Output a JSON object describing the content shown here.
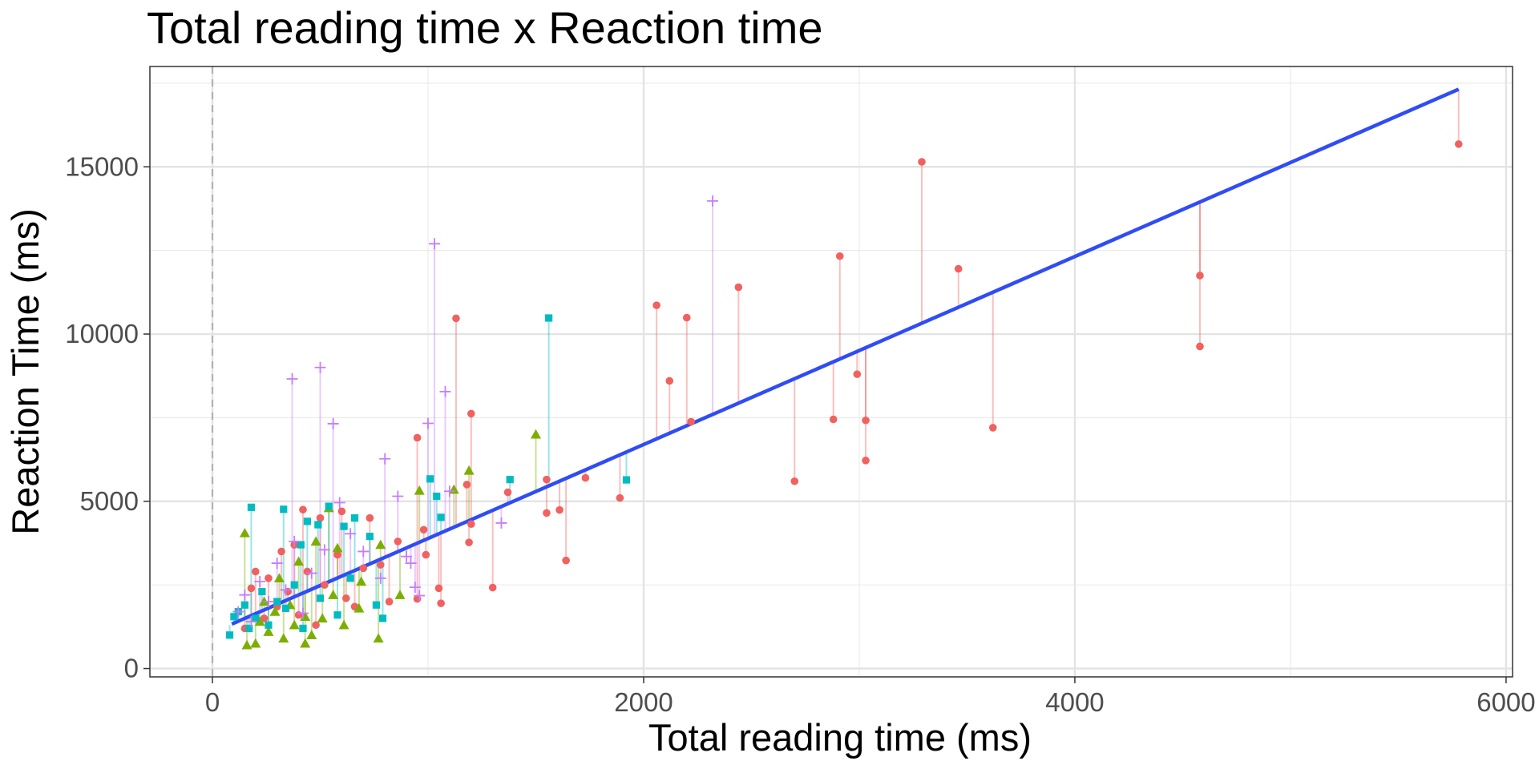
{
  "chart_data": {
    "type": "scatter",
    "title": "Total reading time x Reaction time",
    "xlabel": "Total reading time (ms)",
    "ylabel": "Reaction Time (ms)",
    "xlim": [
      -290,
      6030
    ],
    "ylim": [
      -250,
      18000
    ],
    "x_ticks": [
      0,
      2000,
      4000,
      6000
    ],
    "x_tick_labels": [
      "0",
      "2000",
      "4000",
      "6000"
    ],
    "y_ticks": [
      0,
      5000,
      10000,
      15000
    ],
    "y_tick_labels": [
      "0",
      "5000",
      "10000",
      "15000"
    ],
    "grid": true,
    "legend": "none",
    "reference_line": {
      "x": 0,
      "style": "dashed",
      "color": "#b3b3b3"
    },
    "fit_line": {
      "color": "#2f4cf5",
      "x": [
        90,
        5780
      ],
      "y": [
        1330,
        17320
      ]
    },
    "series": [
      {
        "shape": "circle",
        "color": "#f0615f",
        "points": [
          [
            5780,
            15680
          ],
          [
            3290,
            15150
          ],
          [
            2910,
            12330
          ],
          [
            3460,
            11950
          ],
          [
            2440,
            11400
          ],
          [
            4580,
            11750
          ],
          [
            4580,
            9630
          ],
          [
            2060,
            10860
          ],
          [
            2200,
            10490
          ],
          [
            1130,
            10470
          ],
          [
            2120,
            8600
          ],
          [
            2990,
            8800
          ],
          [
            2880,
            7450
          ],
          [
            3030,
            7420
          ],
          [
            3030,
            6220
          ],
          [
            3620,
            7200
          ],
          [
            2220,
            7380
          ],
          [
            2700,
            5600
          ],
          [
            1200,
            7620
          ],
          [
            1730,
            5700
          ],
          [
            1550,
            5650
          ],
          [
            1890,
            5100
          ],
          [
            1610,
            4740
          ],
          [
            1550,
            4650
          ],
          [
            1640,
            3230
          ],
          [
            1370,
            5270
          ],
          [
            1180,
            5500
          ],
          [
            1200,
            4320
          ],
          [
            1190,
            3770
          ],
          [
            1300,
            2420
          ],
          [
            950,
            6900
          ],
          [
            980,
            4150
          ],
          [
            990,
            3400
          ],
          [
            1050,
            2400
          ],
          [
            1060,
            1950
          ],
          [
            950,
            2080
          ],
          [
            860,
            3800
          ],
          [
            780,
            3100
          ],
          [
            820,
            2000
          ],
          [
            730,
            4500
          ],
          [
            600,
            4700
          ],
          [
            420,
            4750
          ],
          [
            500,
            4500
          ],
          [
            380,
            3700
          ],
          [
            320,
            3500
          ],
          [
            200,
            2900
          ],
          [
            180,
            2400
          ],
          [
            260,
            2700
          ],
          [
            300,
            1850
          ],
          [
            350,
            2300
          ],
          [
            440,
            2900
          ],
          [
            520,
            2500
          ],
          [
            580,
            3400
          ],
          [
            620,
            2100
          ],
          [
            700,
            3000
          ],
          [
            240,
            1500
          ],
          [
            150,
            1200
          ],
          [
            400,
            1600
          ],
          [
            480,
            1300
          ],
          [
            660,
            1850
          ]
        ]
      },
      {
        "shape": "triangle",
        "color": "#7cae00",
        "points": [
          [
            1500,
            7000
          ],
          [
            1190,
            5920
          ],
          [
            1120,
            5350
          ],
          [
            960,
            5320
          ],
          [
            870,
            2200
          ],
          [
            780,
            3700
          ],
          [
            770,
            900
          ],
          [
            690,
            2600
          ],
          [
            580,
            3600
          ],
          [
            540,
            4800
          ],
          [
            480,
            3800
          ],
          [
            400,
            3200
          ],
          [
            430,
            1550
          ],
          [
            310,
            2700
          ],
          [
            240,
            2000
          ],
          [
            150,
            4050
          ],
          [
            160,
            700
          ],
          [
            200,
            750
          ],
          [
            260,
            1100
          ],
          [
            330,
            900
          ],
          [
            360,
            1900
          ],
          [
            460,
            1000
          ],
          [
            510,
            1500
          ],
          [
            610,
            1300
          ],
          [
            680,
            1800
          ],
          [
            560,
            2200
          ],
          [
            430,
            750
          ],
          [
            380,
            1300
          ],
          [
            290,
            1700
          ],
          [
            220,
            1400
          ]
        ]
      },
      {
        "shape": "square",
        "color": "#00bcc0",
        "points": [
          [
            1560,
            10480
          ],
          [
            1920,
            5640
          ],
          [
            1380,
            5650
          ],
          [
            1010,
            5670
          ],
          [
            1060,
            4520
          ],
          [
            1040,
            5150
          ],
          [
            730,
            3950
          ],
          [
            660,
            4500
          ],
          [
            610,
            4250
          ],
          [
            490,
            4300
          ],
          [
            440,
            4400
          ],
          [
            410,
            3700
          ],
          [
            330,
            4760
          ],
          [
            180,
            4820
          ],
          [
            540,
            4850
          ],
          [
            380,
            2500
          ],
          [
            300,
            2000
          ],
          [
            230,
            2300
          ],
          [
            150,
            1900
          ],
          [
            100,
            1550
          ],
          [
            80,
            1000
          ],
          [
            120,
            1700
          ],
          [
            170,
            1200
          ],
          [
            200,
            1500
          ],
          [
            260,
            1300
          ],
          [
            340,
            1800
          ],
          [
            420,
            1200
          ],
          [
            500,
            2100
          ],
          [
            580,
            1600
          ],
          [
            760,
            1900
          ],
          [
            790,
            1500
          ],
          [
            640,
            2700
          ]
        ]
      },
      {
        "shape": "plus",
        "color": "#c77cff",
        "points": [
          [
            2320,
            13980
          ],
          [
            1030,
            12700
          ],
          [
            500,
            9000
          ],
          [
            370,
            8660
          ],
          [
            1080,
            8280
          ],
          [
            560,
            7320
          ],
          [
            1000,
            7330
          ],
          [
            800,
            6270
          ],
          [
            860,
            5150
          ],
          [
            1100,
            5300
          ],
          [
            1340,
            4350
          ],
          [
            900,
            3350
          ],
          [
            920,
            3150
          ],
          [
            940,
            2430
          ],
          [
            960,
            2180
          ],
          [
            780,
            2700
          ],
          [
            640,
            4030
          ],
          [
            590,
            4960
          ],
          [
            380,
            3800
          ],
          [
            300,
            3150
          ],
          [
            220,
            2600
          ],
          [
            150,
            2200
          ],
          [
            120,
            1700
          ],
          [
            180,
            1400
          ],
          [
            260,
            2000
          ],
          [
            340,
            2350
          ],
          [
            420,
            1650
          ],
          [
            460,
            2850
          ],
          [
            520,
            3550
          ],
          [
            700,
            3500
          ]
        ]
      }
    ]
  }
}
